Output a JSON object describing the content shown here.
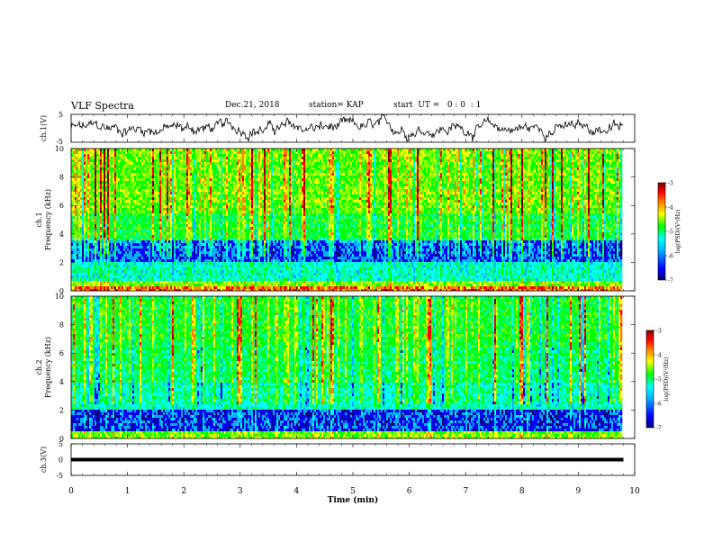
{
  "header": {
    "title": "VLF Spectra",
    "date": "Dec.21, 2018",
    "station": "station= KAP",
    "start": "start  UT =   0 : 0  : 1"
  },
  "chart_data": [
    {
      "type": "line",
      "panel": "ch1-waveform",
      "ylabel": "ch.1(V)",
      "ylim": [
        -5,
        5
      ],
      "yticks": [
        "5",
        "-5"
      ],
      "xlim": [
        0,
        10
      ]
    },
    {
      "type": "heatmap",
      "panel": "ch1-spectrogram",
      "ylabel": "ch.1\nFrequency (kHz)",
      "ylabel_lines": [
        "ch.1",
        "Frequency (kHz)"
      ],
      "ylim": [
        0,
        10
      ],
      "yticks": [
        "0",
        "2",
        "4",
        "6",
        "8",
        "10"
      ],
      "xlim": [
        0,
        10
      ],
      "colorbar": {
        "label": "log(PSD)(V²/Hz)",
        "range": [
          -7,
          -3
        ],
        "ticks": [
          "-3",
          "-4",
          "-5",
          "-6",
          "-7"
        ]
      }
    },
    {
      "type": "heatmap",
      "panel": "ch2-spectrogram",
      "ylabel": "ch.2\nFrequency (kHz)",
      "ylabel_lines": [
        "ch.2",
        "Frequency (kHz)"
      ],
      "ylim": [
        0,
        10
      ],
      "yticks": [
        "0",
        "2",
        "4",
        "6",
        "8",
        "10"
      ],
      "xlim": [
        0,
        10
      ],
      "colorbar": {
        "label": "log(PSD)(V²/Hz)",
        "range": [
          -7,
          -3
        ],
        "ticks": [
          "-3",
          "-4",
          "-5",
          "-6",
          "-7"
        ]
      }
    },
    {
      "type": "line",
      "panel": "ch3-waveform",
      "ylabel": "ch.3(V)",
      "ylim": [
        -5,
        5
      ],
      "yticks": [
        "5",
        "0",
        "-5"
      ],
      "xlim": [
        0,
        10
      ],
      "xlabel": "Time (min)",
      "xticks": [
        "0",
        "1",
        "2",
        "3",
        "4",
        "5",
        "6",
        "7",
        "8",
        "9",
        "10"
      ]
    }
  ],
  "colors": {
    "colormap": [
      "#000080",
      "#0000ff",
      "#00b0ff",
      "#00ffff",
      "#00ff80",
      "#00ff00",
      "#80ff00",
      "#ffff00",
      "#ff8000",
      "#ff0000",
      "#800000"
    ]
  }
}
